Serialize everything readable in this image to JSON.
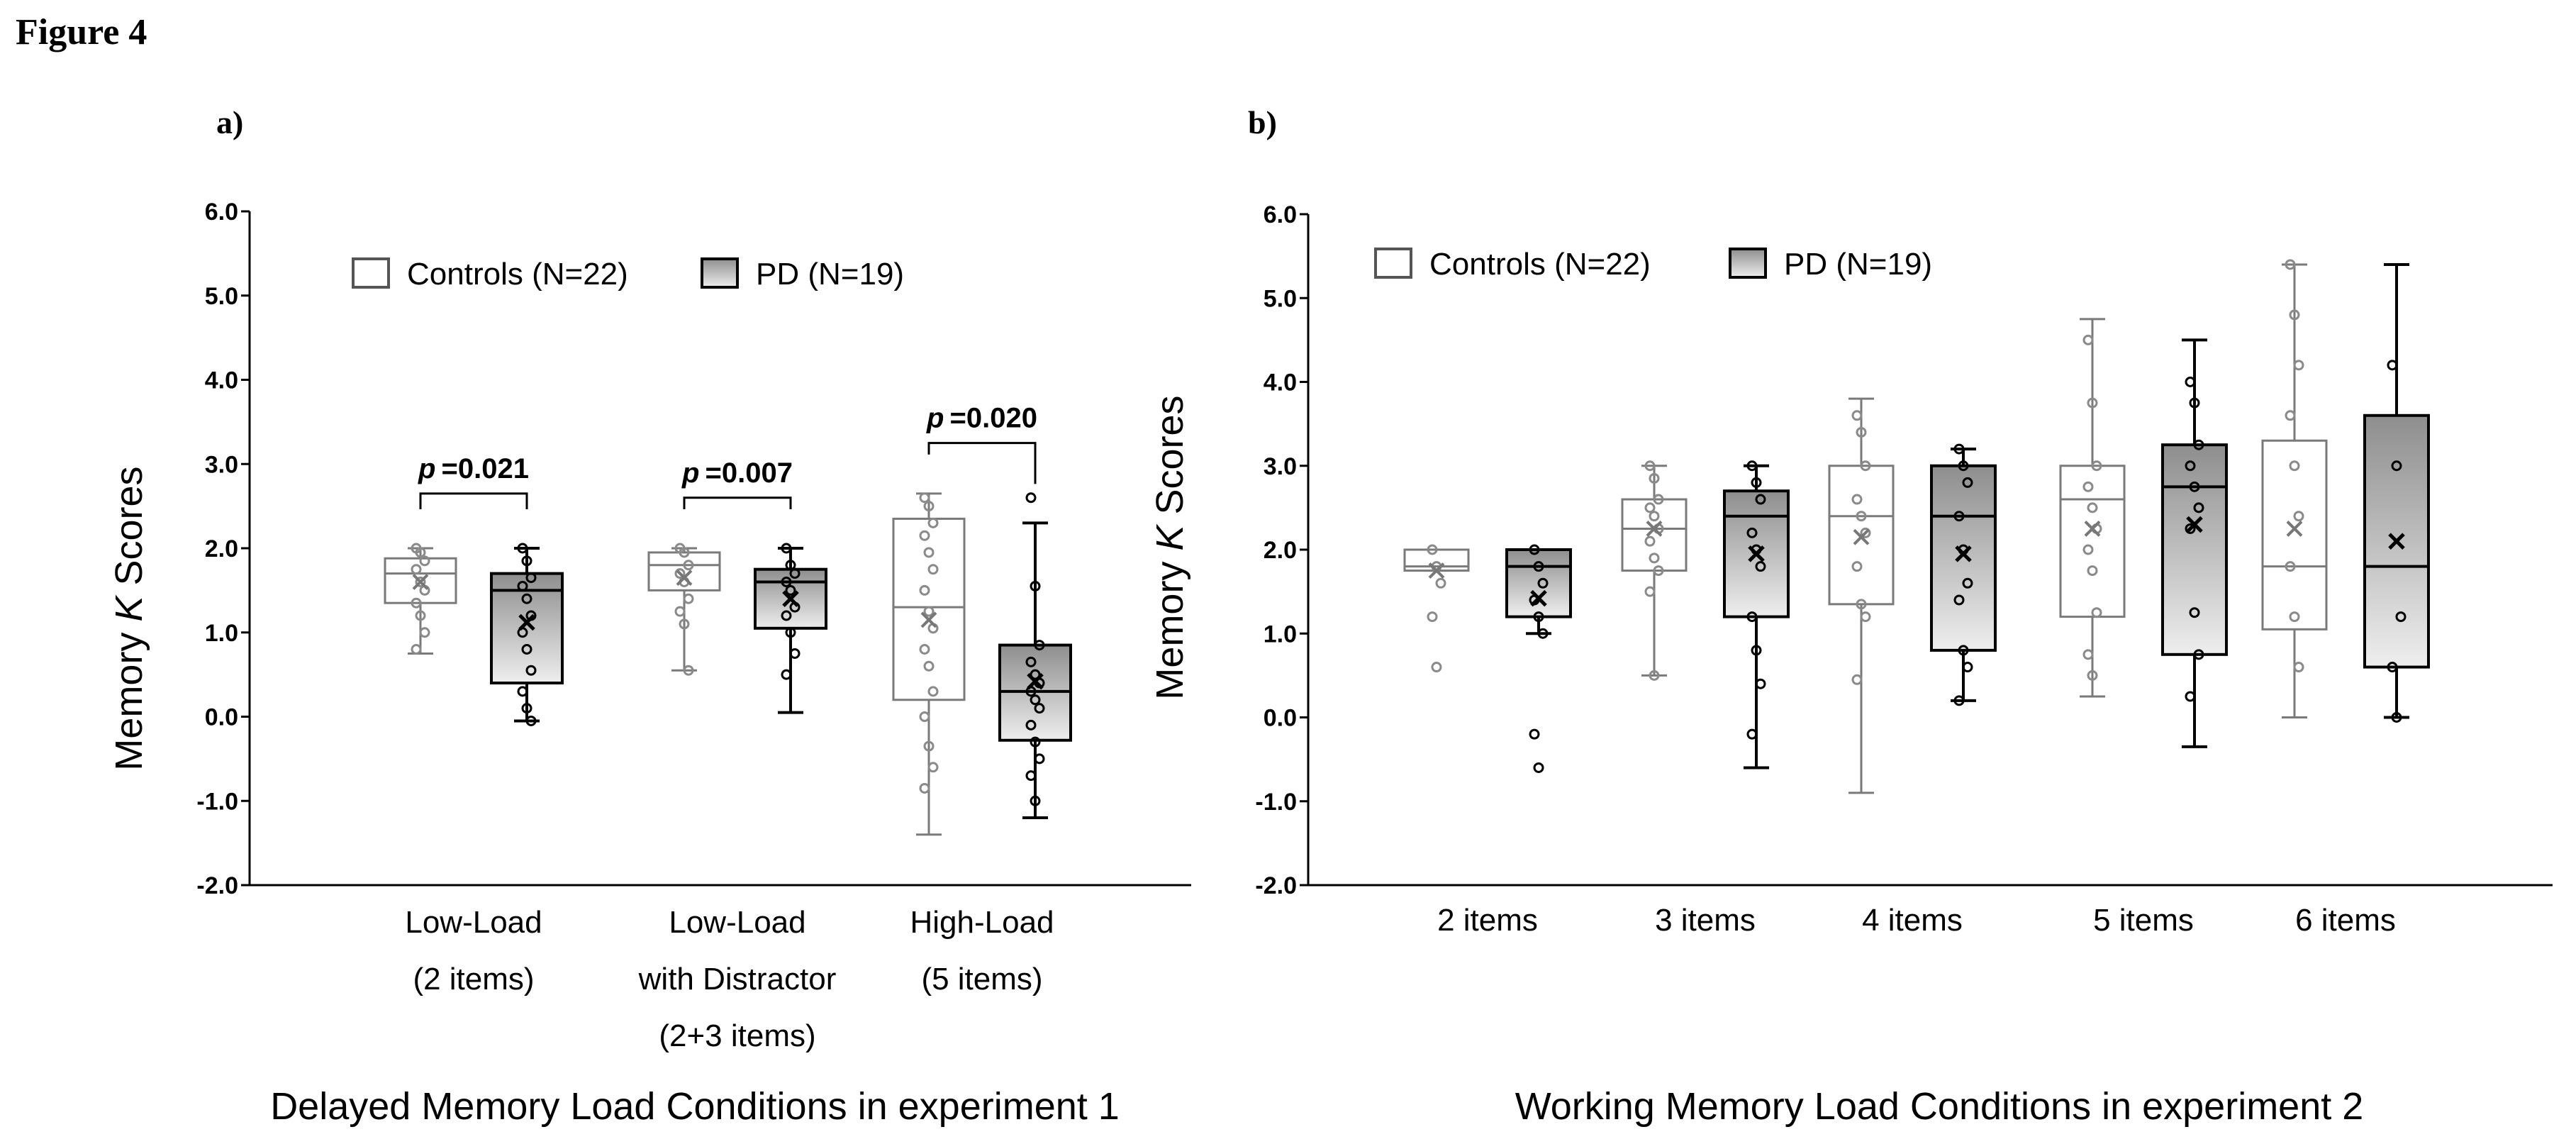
{
  "figure_title": "Figure 4",
  "chart_data": [
    {
      "type": "box",
      "panel_label": "a)",
      "ylabel_pre": "Memory ",
      "ylabel_italic": "K",
      "ylabel_post": " Scores",
      "xlabel": "Delayed Memory Load Conditions in experiment 1",
      "ylim": [
        -2.0,
        6.0
      ],
      "yticks": [
        "6.0",
        "5.0",
        "4.0",
        "3.0",
        "2.0",
        "1.0",
        "0.0",
        "-1.0",
        "-2.0"
      ],
      "legend": {
        "placement": "top",
        "entries": [
          "Controls (N=22)",
          "PD (N=19)"
        ]
      },
      "categories": [
        {
          "label_lines": [
            "Low-Load",
            "(2 items)"
          ]
        },
        {
          "label_lines": [
            "Low-Load",
            "with Distractor",
            "(2+3 items)"
          ]
        },
        {
          "label_lines": [
            "High-Load",
            "(5 items)"
          ]
        }
      ],
      "significance": [
        {
          "category": 0,
          "p_label": "p",
          "p_value": "=0.021",
          "top": 2.65
        },
        {
          "category": 1,
          "p_label": "p",
          "p_value": "=0.007",
          "top": 2.6
        },
        {
          "category": 2,
          "p_label": "p",
          "p_value": "=0.020",
          "top": 3.25
        }
      ],
      "series": [
        {
          "name": "Controls (N=22)",
          "fill": "#ffffff",
          "stroke": "#7a7a7a",
          "boxes": [
            {
              "min": 0.75,
              "q1": 1.35,
              "median": 1.7,
              "q3": 1.88,
              "max": 2.0,
              "mean": 1.6,
              "points": [
                2.0,
                1.95,
                1.85,
                1.75,
                1.6,
                1.5,
                1.35,
                1.2,
                1.0,
                0.8
              ]
            },
            {
              "min": 0.55,
              "q1": 1.5,
              "median": 1.8,
              "q3": 1.95,
              "max": 2.0,
              "mean": 1.65,
              "points": [
                2.0,
                1.95,
                1.8,
                1.7,
                1.6,
                1.4,
                1.25,
                1.1,
                0.55
              ]
            },
            {
              "min": -1.4,
              "q1": 0.2,
              "median": 1.3,
              "q3": 2.35,
              "max": 2.65,
              "mean": 1.15,
              "points": [
                2.6,
                2.5,
                2.3,
                2.15,
                1.95,
                1.75,
                1.5,
                1.25,
                1.05,
                0.8,
                0.6,
                0.3,
                0.0,
                -0.35,
                -0.6,
                -0.85
              ]
            }
          ]
        },
        {
          "name": "PD (N=19)",
          "fill": "#bdbdbd",
          "stroke": "#000000",
          "boxes": [
            {
              "min": -0.05,
              "q1": 0.4,
              "median": 1.5,
              "q3": 1.7,
              "max": 2.0,
              "mean": 1.12,
              "points": [
                2.0,
                1.85,
                1.65,
                1.55,
                1.4,
                1.2,
                1.0,
                0.8,
                0.55,
                0.3,
                0.1,
                -0.05
              ]
            },
            {
              "min": 0.05,
              "q1": 1.05,
              "median": 1.6,
              "q3": 1.75,
              "max": 2.0,
              "mean": 1.4,
              "points": [
                2.0,
                1.8,
                1.7,
                1.6,
                1.5,
                1.3,
                1.2,
                1.0,
                0.75,
                0.5
              ]
            },
            {
              "min": -1.2,
              "q1": -0.28,
              "median": 0.3,
              "q3": 0.85,
              "max": 2.3,
              "mean": 0.42,
              "points": [
                2.6,
                1.55,
                0.85,
                0.65,
                0.5,
                0.4,
                0.3,
                0.2,
                0.1,
                -0.1,
                -0.3,
                -0.5,
                -0.7,
                -1.0
              ]
            }
          ]
        }
      ]
    },
    {
      "type": "box",
      "panel_label": "b)",
      "ylabel_pre": "Memory ",
      "ylabel_italic": "K",
      "ylabel_post": " Scores",
      "xlabel": "Working Memory Load Conditions in experiment 2",
      "ylim": [
        -2.0,
        6.0
      ],
      "yticks": [
        "6.0",
        "5.0",
        "4.0",
        "3.0",
        "2.0",
        "1.0",
        "0.0",
        "-1.0",
        "-2.0"
      ],
      "legend": {
        "placement": "top-left",
        "entries": [
          "Controls (N=22)",
          "PD (N=19)"
        ]
      },
      "categories": [
        {
          "label_lines": [
            "2 items"
          ]
        },
        {
          "label_lines": [
            "3 items"
          ]
        },
        {
          "label_lines": [
            "4 items"
          ]
        },
        {
          "label_lines": [
            "5 items"
          ]
        },
        {
          "label_lines": [
            "6 items"
          ]
        }
      ],
      "significance": [],
      "series": [
        {
          "name": "Controls (N=22)",
          "fill": "#ffffff",
          "stroke": "#7a7a7a",
          "boxes": [
            {
              "min": 1.75,
              "q1": 1.75,
              "median": 1.8,
              "q3": 2.0,
              "max": 2.0,
              "mean": 1.75,
              "points": [
                2.0,
                1.8,
                1.6,
                1.2,
                0.6
              ]
            },
            {
              "min": 0.5,
              "q1": 1.75,
              "median": 2.25,
              "q3": 2.6,
              "max": 3.0,
              "mean": 2.25,
              "points": [
                3.0,
                2.85,
                2.6,
                2.5,
                2.4,
                2.25,
                2.1,
                1.9,
                1.75,
                1.5,
                0.5
              ]
            },
            {
              "min": -0.9,
              "q1": 1.35,
              "median": 2.4,
              "q3": 3.0,
              "max": 3.8,
              "mean": 2.15,
              "points": [
                3.6,
                3.4,
                3.0,
                2.6,
                2.4,
                2.2,
                1.8,
                1.35,
                1.2,
                0.45
              ]
            },
            {
              "min": 0.25,
              "q1": 1.2,
              "median": 2.6,
              "q3": 3.0,
              "max": 4.75,
              "mean": 2.25,
              "points": [
                4.5,
                3.75,
                3.0,
                2.75,
                2.5,
                2.25,
                2.0,
                1.75,
                1.25,
                0.75,
                0.5
              ]
            },
            {
              "min": 0.0,
              "q1": 1.05,
              "median": 1.8,
              "q3": 3.3,
              "max": 5.4,
              "mean": 2.25,
              "points": [
                5.4,
                4.8,
                4.2,
                3.6,
                3.0,
                2.4,
                1.8,
                1.2,
                0.6
              ]
            }
          ]
        },
        {
          "name": "PD (N=19)",
          "fill": "#bdbdbd",
          "stroke": "#000000",
          "boxes": [
            {
              "min": 1.0,
              "q1": 1.2,
              "median": 1.8,
              "q3": 2.0,
              "max": 2.0,
              "mean": 1.42,
              "points": [
                2.0,
                1.8,
                1.6,
                1.4,
                1.2,
                1.0,
                -0.2,
                -0.6
              ]
            },
            {
              "min": -0.6,
              "q1": 1.2,
              "median": 2.4,
              "q3": 2.7,
              "max": 3.0,
              "mean": 1.95,
              "points": [
                3.0,
                2.8,
                2.6,
                2.2,
                2.0,
                1.8,
                1.2,
                0.8,
                0.4,
                -0.2
              ]
            },
            {
              "min": 0.2,
              "q1": 0.8,
              "median": 2.4,
              "q3": 3.0,
              "max": 3.2,
              "mean": 1.95,
              "points": [
                3.2,
                3.0,
                2.8,
                2.4,
                2.0,
                1.6,
                1.4,
                0.8,
                0.6,
                0.2
              ]
            },
            {
              "min": -0.35,
              "q1": 0.75,
              "median": 2.75,
              "q3": 3.25,
              "max": 4.5,
              "mean": 2.3,
              "points": [
                4.0,
                3.75,
                3.25,
                3.0,
                2.75,
                2.5,
                2.25,
                1.25,
                0.75,
                0.25
              ]
            },
            {
              "min": 0.0,
              "q1": 0.6,
              "median": 1.8,
              "q3": 3.6,
              "max": 5.4,
              "mean": 2.1,
              "points": [
                4.2,
                3.0,
                1.2,
                0.6,
                0.0
              ]
            }
          ]
        }
      ]
    }
  ]
}
